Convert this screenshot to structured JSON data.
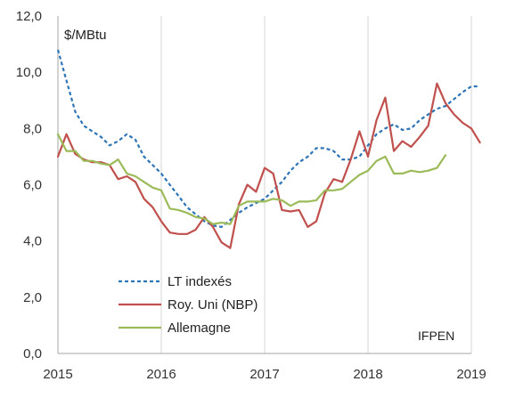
{
  "chart_data": {
    "type": "line",
    "title": "",
    "ylabel": "$/MBtu",
    "xlabel": "",
    "ylim": [
      0,
      12
    ],
    "xlim": [
      2015,
      2019
    ],
    "yticks": [
      "0,0",
      "2,0",
      "4,0",
      "6,0",
      "8,0",
      "10,0",
      "12,0"
    ],
    "xticks": [
      "2015",
      "2016",
      "2017",
      "2018",
      "2019"
    ],
    "grid": "vertical",
    "legend_position": "bottom-left",
    "credit": "IFPEN",
    "series": [
      {
        "name": "LT indexés",
        "color": "#2e75b6",
        "style": "dashed",
        "points": [
          [
            2015.0,
            10.8
          ],
          [
            2015.083,
            9.7
          ],
          [
            2015.167,
            8.6
          ],
          [
            2015.25,
            8.1
          ],
          [
            2015.333,
            7.9
          ],
          [
            2015.417,
            7.7
          ],
          [
            2015.5,
            7.4
          ],
          [
            2015.583,
            7.55
          ],
          [
            2015.667,
            7.8
          ],
          [
            2015.75,
            7.6
          ],
          [
            2015.833,
            7.0
          ],
          [
            2015.917,
            6.7
          ],
          [
            2016.0,
            6.4
          ],
          [
            2016.083,
            6.0
          ],
          [
            2016.167,
            5.6
          ],
          [
            2016.25,
            5.2
          ],
          [
            2016.333,
            4.95
          ],
          [
            2016.417,
            4.7
          ],
          [
            2016.5,
            4.55
          ],
          [
            2016.583,
            4.5
          ],
          [
            2016.667,
            4.75
          ],
          [
            2016.75,
            5.0
          ],
          [
            2016.833,
            5.2
          ],
          [
            2016.917,
            5.35
          ],
          [
            2017.0,
            5.5
          ],
          [
            2017.083,
            5.8
          ],
          [
            2017.167,
            6.1
          ],
          [
            2017.25,
            6.5
          ],
          [
            2017.333,
            6.8
          ],
          [
            2017.417,
            7.0
          ],
          [
            2017.5,
            7.3
          ],
          [
            2017.583,
            7.3
          ],
          [
            2017.667,
            7.2
          ],
          [
            2017.75,
            6.9
          ],
          [
            2017.833,
            6.9
          ],
          [
            2017.917,
            7.0
          ],
          [
            2018.0,
            7.4
          ],
          [
            2018.083,
            7.8
          ],
          [
            2018.167,
            8.0
          ],
          [
            2018.25,
            8.15
          ],
          [
            2018.333,
            7.95
          ],
          [
            2018.417,
            8.0
          ],
          [
            2018.5,
            8.3
          ],
          [
            2018.583,
            8.5
          ],
          [
            2018.667,
            8.7
          ],
          [
            2018.75,
            8.8
          ],
          [
            2018.833,
            9.05
          ],
          [
            2018.917,
            9.3
          ],
          [
            2019.0,
            9.5
          ],
          [
            2019.083,
            9.5
          ]
        ]
      },
      {
        "name": "Roy. Uni (NBP)",
        "color": "#c0504d",
        "style": "solid",
        "points": [
          [
            2015.0,
            7.0
          ],
          [
            2015.083,
            7.8
          ],
          [
            2015.167,
            7.1
          ],
          [
            2015.25,
            6.9
          ],
          [
            2015.333,
            6.8
          ],
          [
            2015.417,
            6.8
          ],
          [
            2015.5,
            6.7
          ],
          [
            2015.583,
            6.2
          ],
          [
            2015.667,
            6.3
          ],
          [
            2015.75,
            6.1
          ],
          [
            2015.833,
            5.5
          ],
          [
            2015.917,
            5.2
          ],
          [
            2016.0,
            4.7
          ],
          [
            2016.083,
            4.3
          ],
          [
            2016.167,
            4.25
          ],
          [
            2016.25,
            4.25
          ],
          [
            2016.333,
            4.4
          ],
          [
            2016.417,
            4.85
          ],
          [
            2016.5,
            4.5
          ],
          [
            2016.583,
            3.95
          ],
          [
            2016.667,
            3.75
          ],
          [
            2016.75,
            5.3
          ],
          [
            2016.833,
            6.0
          ],
          [
            2016.917,
            5.75
          ],
          [
            2017.0,
            6.6
          ],
          [
            2017.083,
            6.4
          ],
          [
            2017.167,
            5.1
          ],
          [
            2017.25,
            5.05
          ],
          [
            2017.333,
            5.1
          ],
          [
            2017.417,
            4.5
          ],
          [
            2017.5,
            4.7
          ],
          [
            2017.583,
            5.7
          ],
          [
            2017.667,
            6.2
          ],
          [
            2017.75,
            6.1
          ],
          [
            2017.833,
            6.9
          ],
          [
            2017.917,
            7.9
          ],
          [
            2018.0,
            7.0
          ],
          [
            2018.083,
            8.3
          ],
          [
            2018.167,
            9.1
          ],
          [
            2018.25,
            7.2
          ],
          [
            2018.333,
            7.55
          ],
          [
            2018.417,
            7.35
          ],
          [
            2018.5,
            7.7
          ],
          [
            2018.583,
            8.1
          ],
          [
            2018.667,
            9.6
          ],
          [
            2018.75,
            8.9
          ],
          [
            2018.833,
            8.5
          ],
          [
            2018.917,
            8.2
          ],
          [
            2019.0,
            8.0
          ],
          [
            2019.083,
            7.5
          ]
        ]
      },
      {
        "name": "Allemagne",
        "color": "#9bbb59",
        "style": "solid",
        "points": [
          [
            2015.0,
            7.8
          ],
          [
            2015.083,
            7.2
          ],
          [
            2015.167,
            7.2
          ],
          [
            2015.25,
            6.85
          ],
          [
            2015.333,
            6.85
          ],
          [
            2015.417,
            6.75
          ],
          [
            2015.5,
            6.7
          ],
          [
            2015.583,
            6.9
          ],
          [
            2015.667,
            6.4
          ],
          [
            2015.75,
            6.3
          ],
          [
            2015.833,
            6.1
          ],
          [
            2015.917,
            5.9
          ],
          [
            2016.0,
            5.8
          ],
          [
            2016.083,
            5.15
          ],
          [
            2016.167,
            5.1
          ],
          [
            2016.25,
            5.0
          ],
          [
            2016.333,
            4.85
          ],
          [
            2016.417,
            4.8
          ],
          [
            2016.5,
            4.6
          ],
          [
            2016.583,
            4.65
          ],
          [
            2016.667,
            4.6
          ],
          [
            2016.75,
            5.25
          ],
          [
            2016.833,
            5.4
          ],
          [
            2016.917,
            5.4
          ],
          [
            2017.0,
            5.4
          ],
          [
            2017.083,
            5.5
          ],
          [
            2017.167,
            5.45
          ],
          [
            2017.25,
            5.25
          ],
          [
            2017.333,
            5.4
          ],
          [
            2017.417,
            5.4
          ],
          [
            2017.5,
            5.45
          ],
          [
            2017.583,
            5.8
          ],
          [
            2017.667,
            5.8
          ],
          [
            2017.75,
            5.85
          ],
          [
            2017.833,
            6.1
          ],
          [
            2017.917,
            6.35
          ],
          [
            2018.0,
            6.5
          ],
          [
            2018.083,
            6.85
          ],
          [
            2018.167,
            7.0
          ],
          [
            2018.25,
            6.4
          ],
          [
            2018.333,
            6.4
          ],
          [
            2018.417,
            6.5
          ],
          [
            2018.5,
            6.45
          ],
          [
            2018.583,
            6.5
          ],
          [
            2018.667,
            6.6
          ],
          [
            2018.75,
            7.05
          ]
        ]
      }
    ]
  }
}
